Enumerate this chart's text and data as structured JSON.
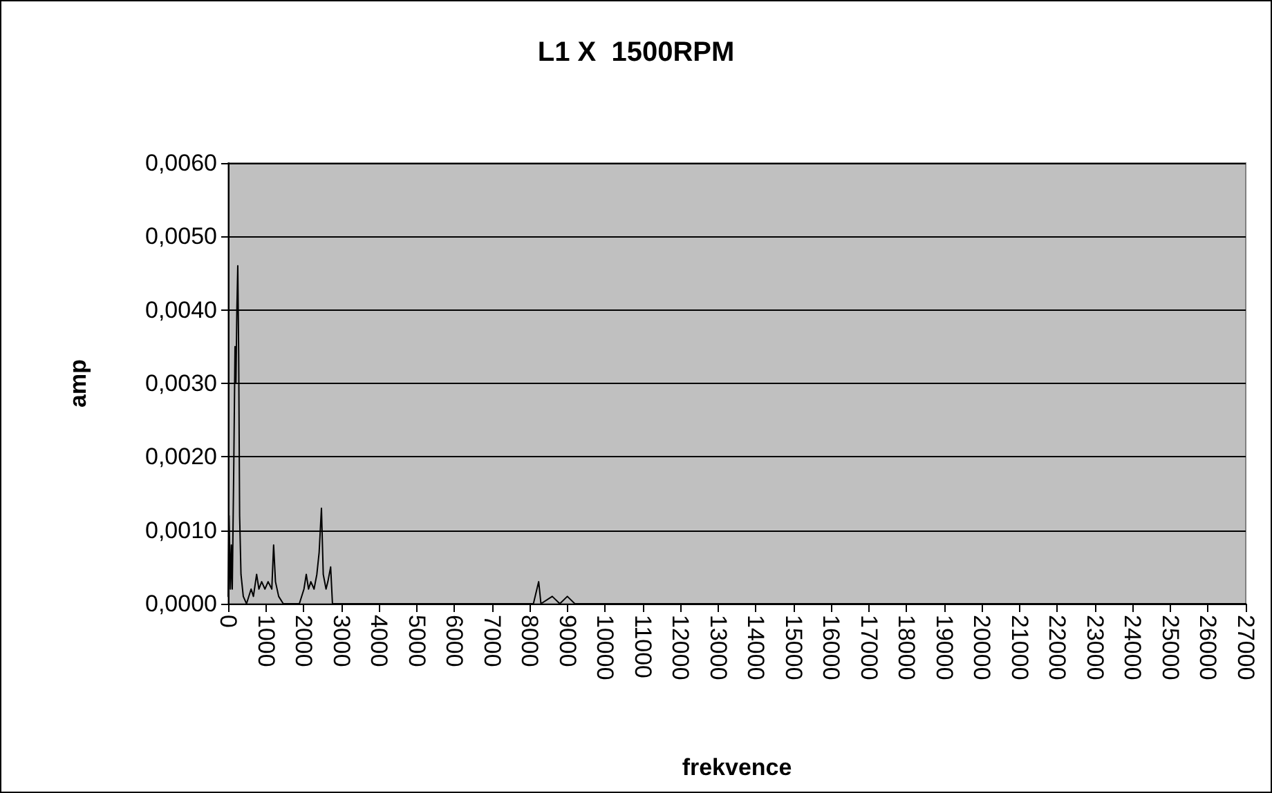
{
  "chart_data": {
    "type": "line",
    "title": "L1 X  1500RPM",
    "xlabel": "frekvence",
    "ylabel": "amp",
    "x": [
      0,
      24,
      61,
      85,
      110,
      146,
      183,
      207,
      232,
      256,
      280,
      305,
      341,
      402,
      488,
      610,
      671,
      756,
      817,
      890,
      976,
      1061,
      1159,
      1207,
      1256,
      1341,
      1463,
      1646,
      1890,
      2012,
      2073,
      2134,
      2195,
      2280,
      2354,
      2415,
      2476,
      2524,
      2598,
      2646,
      2720,
      2768,
      3110,
      4900,
      5000,
      5400,
      5600,
      7900,
      8100,
      8240,
      8300,
      8600,
      8800,
      9000,
      9200,
      9400,
      16000,
      16240,
      16400,
      27000
    ],
    "series": [
      {
        "color": "#000000",
        "values": [
          0.0001,
          0.0012,
          0.0002,
          0.0008,
          0.0002,
          0.0017,
          0.0035,
          0.003,
          0.004,
          0.0046,
          0.0034,
          0.0012,
          0.0004,
          0.0001,
          0,
          0.0002,
          0.0001,
          0.0004,
          0.0002,
          0.0003,
          0.0002,
          0.0003,
          0.0002,
          0.0008,
          0.0003,
          0.0001,
          0,
          0,
          0,
          0.0002,
          0.0004,
          0.0002,
          0.0003,
          0.0002,
          0.0004,
          0.0007,
          0.0013,
          0.0004,
          0.0002,
          0.0003,
          0.0005,
          0,
          0,
          0,
          0,
          0,
          0,
          0,
          0,
          0.0003,
          0,
          0.0001,
          0,
          0.0001,
          0,
          0,
          0,
          0,
          0,
          0
        ]
      }
    ],
    "xlim": [
      0,
      27000
    ],
    "xticks": [
      0,
      1000,
      2000,
      3000,
      4000,
      5000,
      6000,
      7000,
      8000,
      9000,
      10000,
      11000,
      12000,
      13000,
      14000,
      15000,
      16000,
      17000,
      18000,
      19000,
      20000,
      21000,
      22000,
      23000,
      24000,
      25000,
      26000,
      27000
    ],
    "ylim": [
      0,
      0.006
    ],
    "yticks": [
      {
        "value": 0,
        "label": "0,0000"
      },
      {
        "value": 0.001,
        "label": "0,0010"
      },
      {
        "value": 0.002,
        "label": "0,0020"
      },
      {
        "value": 0.003,
        "label": "0,0030"
      },
      {
        "value": 0.004,
        "label": "0,0040"
      },
      {
        "value": 0.005,
        "label": "0,0050"
      },
      {
        "value": 0.006,
        "label": "0,0060"
      }
    ],
    "grid": "y",
    "marker": "none",
    "line_style": "solid"
  }
}
